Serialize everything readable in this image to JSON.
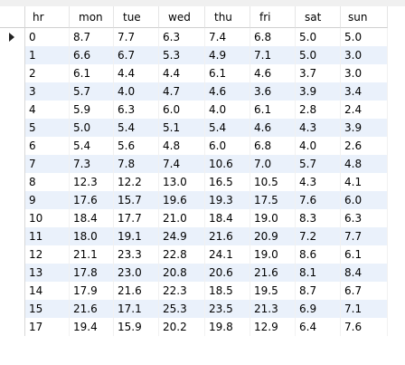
{
  "table": {
    "columns": [
      "hr",
      "mon",
      "tue",
      "wed",
      "thu",
      "fri",
      "sat",
      "sun"
    ],
    "rows": [
      [
        "0",
        "8.7",
        "7.7",
        "6.3",
        "7.4",
        "6.8",
        "5.0",
        "5.0"
      ],
      [
        "1",
        "6.6",
        "6.7",
        "5.3",
        "4.9",
        "7.1",
        "5.0",
        "3.0"
      ],
      [
        "2",
        "6.1",
        "4.4",
        "4.4",
        "6.1",
        "4.6",
        "3.7",
        "3.0"
      ],
      [
        "3",
        "5.7",
        "4.0",
        "4.7",
        "4.6",
        "3.6",
        "3.9",
        "3.4"
      ],
      [
        "4",
        "5.9",
        "6.3",
        "6.0",
        "4.0",
        "6.1",
        "2.8",
        "2.4"
      ],
      [
        "5",
        "5.0",
        "5.4",
        "5.1",
        "5.4",
        "4.6",
        "4.3",
        "3.9"
      ],
      [
        "6",
        "5.4",
        "5.6",
        "4.8",
        "6.0",
        "6.8",
        "4.0",
        "2.6"
      ],
      [
        "7",
        "7.3",
        "7.8",
        "7.4",
        "10.6",
        "7.0",
        "5.7",
        "4.8"
      ],
      [
        "8",
        "12.3",
        "12.2",
        "13.0",
        "16.5",
        "10.5",
        "4.3",
        "4.1"
      ],
      [
        "9",
        "17.6",
        "15.7",
        "19.6",
        "19.3",
        "17.5",
        "7.6",
        "6.0"
      ],
      [
        "10",
        "18.4",
        "17.7",
        "21.0",
        "18.4",
        "19.0",
        "8.3",
        "6.3"
      ],
      [
        "11",
        "18.0",
        "19.1",
        "24.9",
        "21.6",
        "20.9",
        "7.2",
        "7.7"
      ],
      [
        "12",
        "21.1",
        "23.3",
        "22.8",
        "24.1",
        "19.0",
        "8.6",
        "6.1"
      ],
      [
        "13",
        "17.8",
        "23.0",
        "20.8",
        "20.6",
        "21.6",
        "8.1",
        "8.4"
      ],
      [
        "14",
        "17.9",
        "21.6",
        "22.3",
        "18.5",
        "19.5",
        "8.7",
        "6.7"
      ],
      [
        "15",
        "21.6",
        "17.1",
        "25.3",
        "23.5",
        "21.3",
        "6.9",
        "7.1"
      ],
      [
        "17",
        "19.4",
        "15.9",
        "20.2",
        "19.8",
        "12.9",
        "6.4",
        "7.6"
      ]
    ],
    "current_row_index": 0,
    "colors": {
      "alt_row": "#eaf1fb",
      "header_border": "#cfcfcf"
    }
  }
}
